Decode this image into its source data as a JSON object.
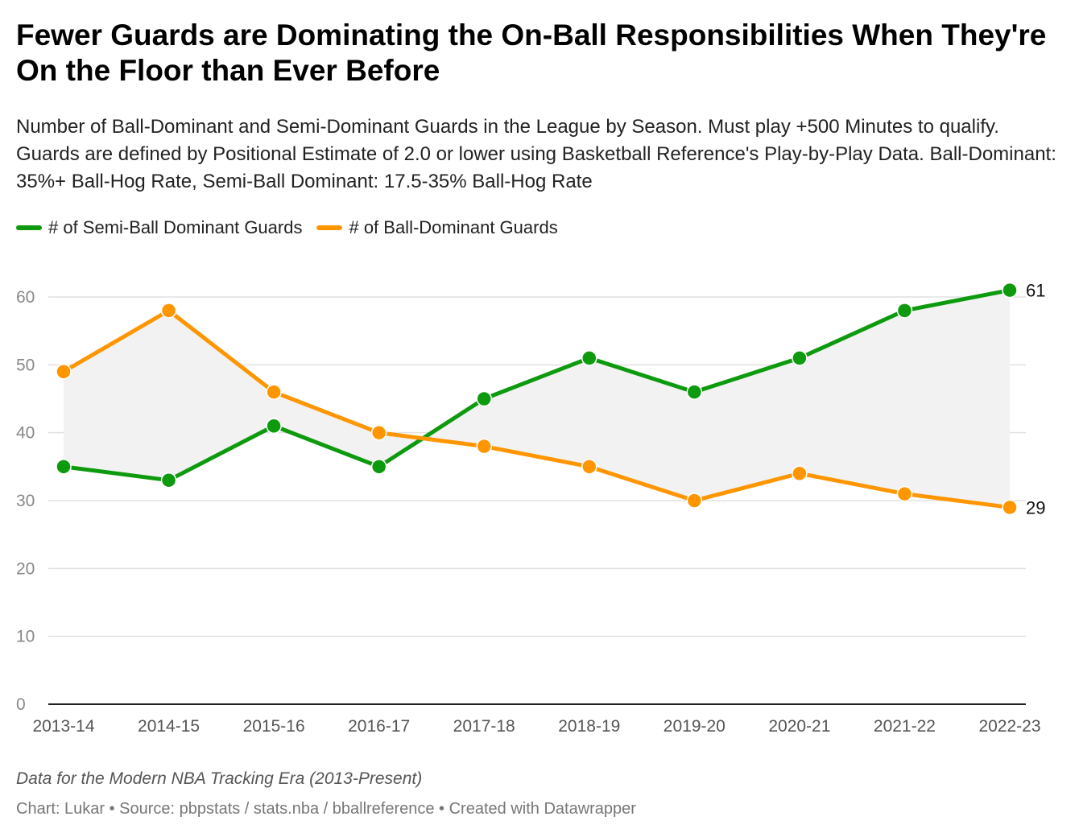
{
  "header": {
    "title": "Fewer Guards are Dominating the On-Ball Responsibilities When They're On the Floor than Ever Before",
    "subtitle": "Number of Ball-Dominant and Semi-Dominant Guards in the League by Season. Must play +500 Minutes to qualify. Guards are defined by Positional Estimate of 2.0 or lower using Basketball Reference's Play-by-Play Data. Ball-Dominant: 35%+ Ball-Hog Rate, Semi-Ball Dominant: 17.5-35% Ball-Hog Rate"
  },
  "footer": {
    "notes": "Data for the Modern NBA Tracking Era (2013-Present)",
    "credit": "Chart: Lukar • Source: pbpstats / stats.nba / bballreference • Created with Datawrapper"
  },
  "chart_data": {
    "type": "line",
    "categories": [
      "2013-14",
      "2014-15",
      "2015-16",
      "2016-17",
      "2017-18",
      "2018-19",
      "2019-20",
      "2020-21",
      "2021-22",
      "2022-23"
    ],
    "series": [
      {
        "name": "# of Semi-Ball Dominant Guards",
        "color": "#0e9a0e",
        "values": [
          35,
          33,
          41,
          35,
          45,
          51,
          46,
          51,
          58,
          61
        ],
        "end_label": "61"
      },
      {
        "name": "# of Ball-Dominant Guards",
        "color": "#ff9600",
        "values": [
          49,
          58,
          46,
          40,
          38,
          35,
          30,
          34,
          31,
          29
        ],
        "end_label": "29"
      }
    ],
    "ylim": [
      0,
      60
    ],
    "yticks": [
      "0",
      "10",
      "20",
      "30",
      "40",
      "50",
      "60"
    ],
    "grid": true,
    "area_between_series": true,
    "area_color": "#f2f2f2",
    "legend_position": "top-left"
  }
}
